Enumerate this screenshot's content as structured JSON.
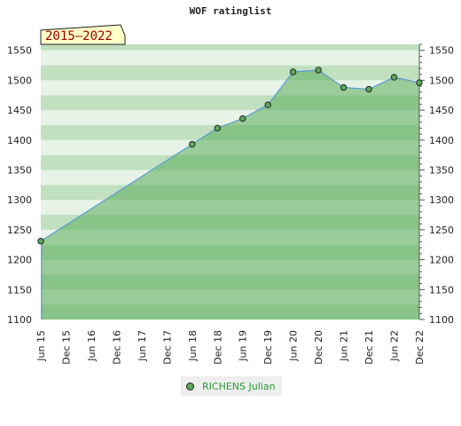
{
  "chart_data": {
    "type": "area",
    "title": "WOF ratinglist",
    "range_label": "2015–2022",
    "x_ticks": [
      "Jun 15",
      "Dec 15",
      "Jun 16",
      "Dec 16",
      "Jun 17",
      "Dec 17",
      "Jun 18",
      "Dec 18",
      "Jun 19",
      "Dec 19",
      "Jun 20",
      "Dec 20",
      "Jun 21",
      "Dec 21",
      "Jun 22",
      "Dec 22"
    ],
    "y_ticks": [
      1100,
      1150,
      1200,
      1250,
      1300,
      1350,
      1400,
      1450,
      1500,
      1550
    ],
    "ylim": [
      1100,
      1560
    ],
    "series": [
      {
        "name": "RICHENS Julian",
        "points": [
          {
            "x": "Jun 15",
            "y": 1231
          },
          {
            "x": "Jun 18",
            "y": 1393
          },
          {
            "x": "Dec 18",
            "y": 1420
          },
          {
            "x": "Jun 19",
            "y": 1436
          },
          {
            "x": "Dec 19",
            "y": 1459
          },
          {
            "x": "Jun 20",
            "y": 1514
          },
          {
            "x": "Dec 20",
            "y": 1517
          },
          {
            "x": "Jun 21",
            "y": 1488
          },
          {
            "x": "Dec 21",
            "y": 1485
          },
          {
            "x": "Jun 22",
            "y": 1505
          },
          {
            "x": "Dec 22",
            "y": 1496
          }
        ]
      }
    ],
    "legend_position": "bottom",
    "grid": true,
    "colors": {
      "line": "#5b9bd5",
      "fill": "#5aab5a",
      "marker": "#5aab5a",
      "band_light": "#e6f3e6",
      "band_dark": "#c0e0c0",
      "label_box": "#ffffc8",
      "label_text": "#a00000",
      "legend_text": "#2a9a3a"
    }
  }
}
